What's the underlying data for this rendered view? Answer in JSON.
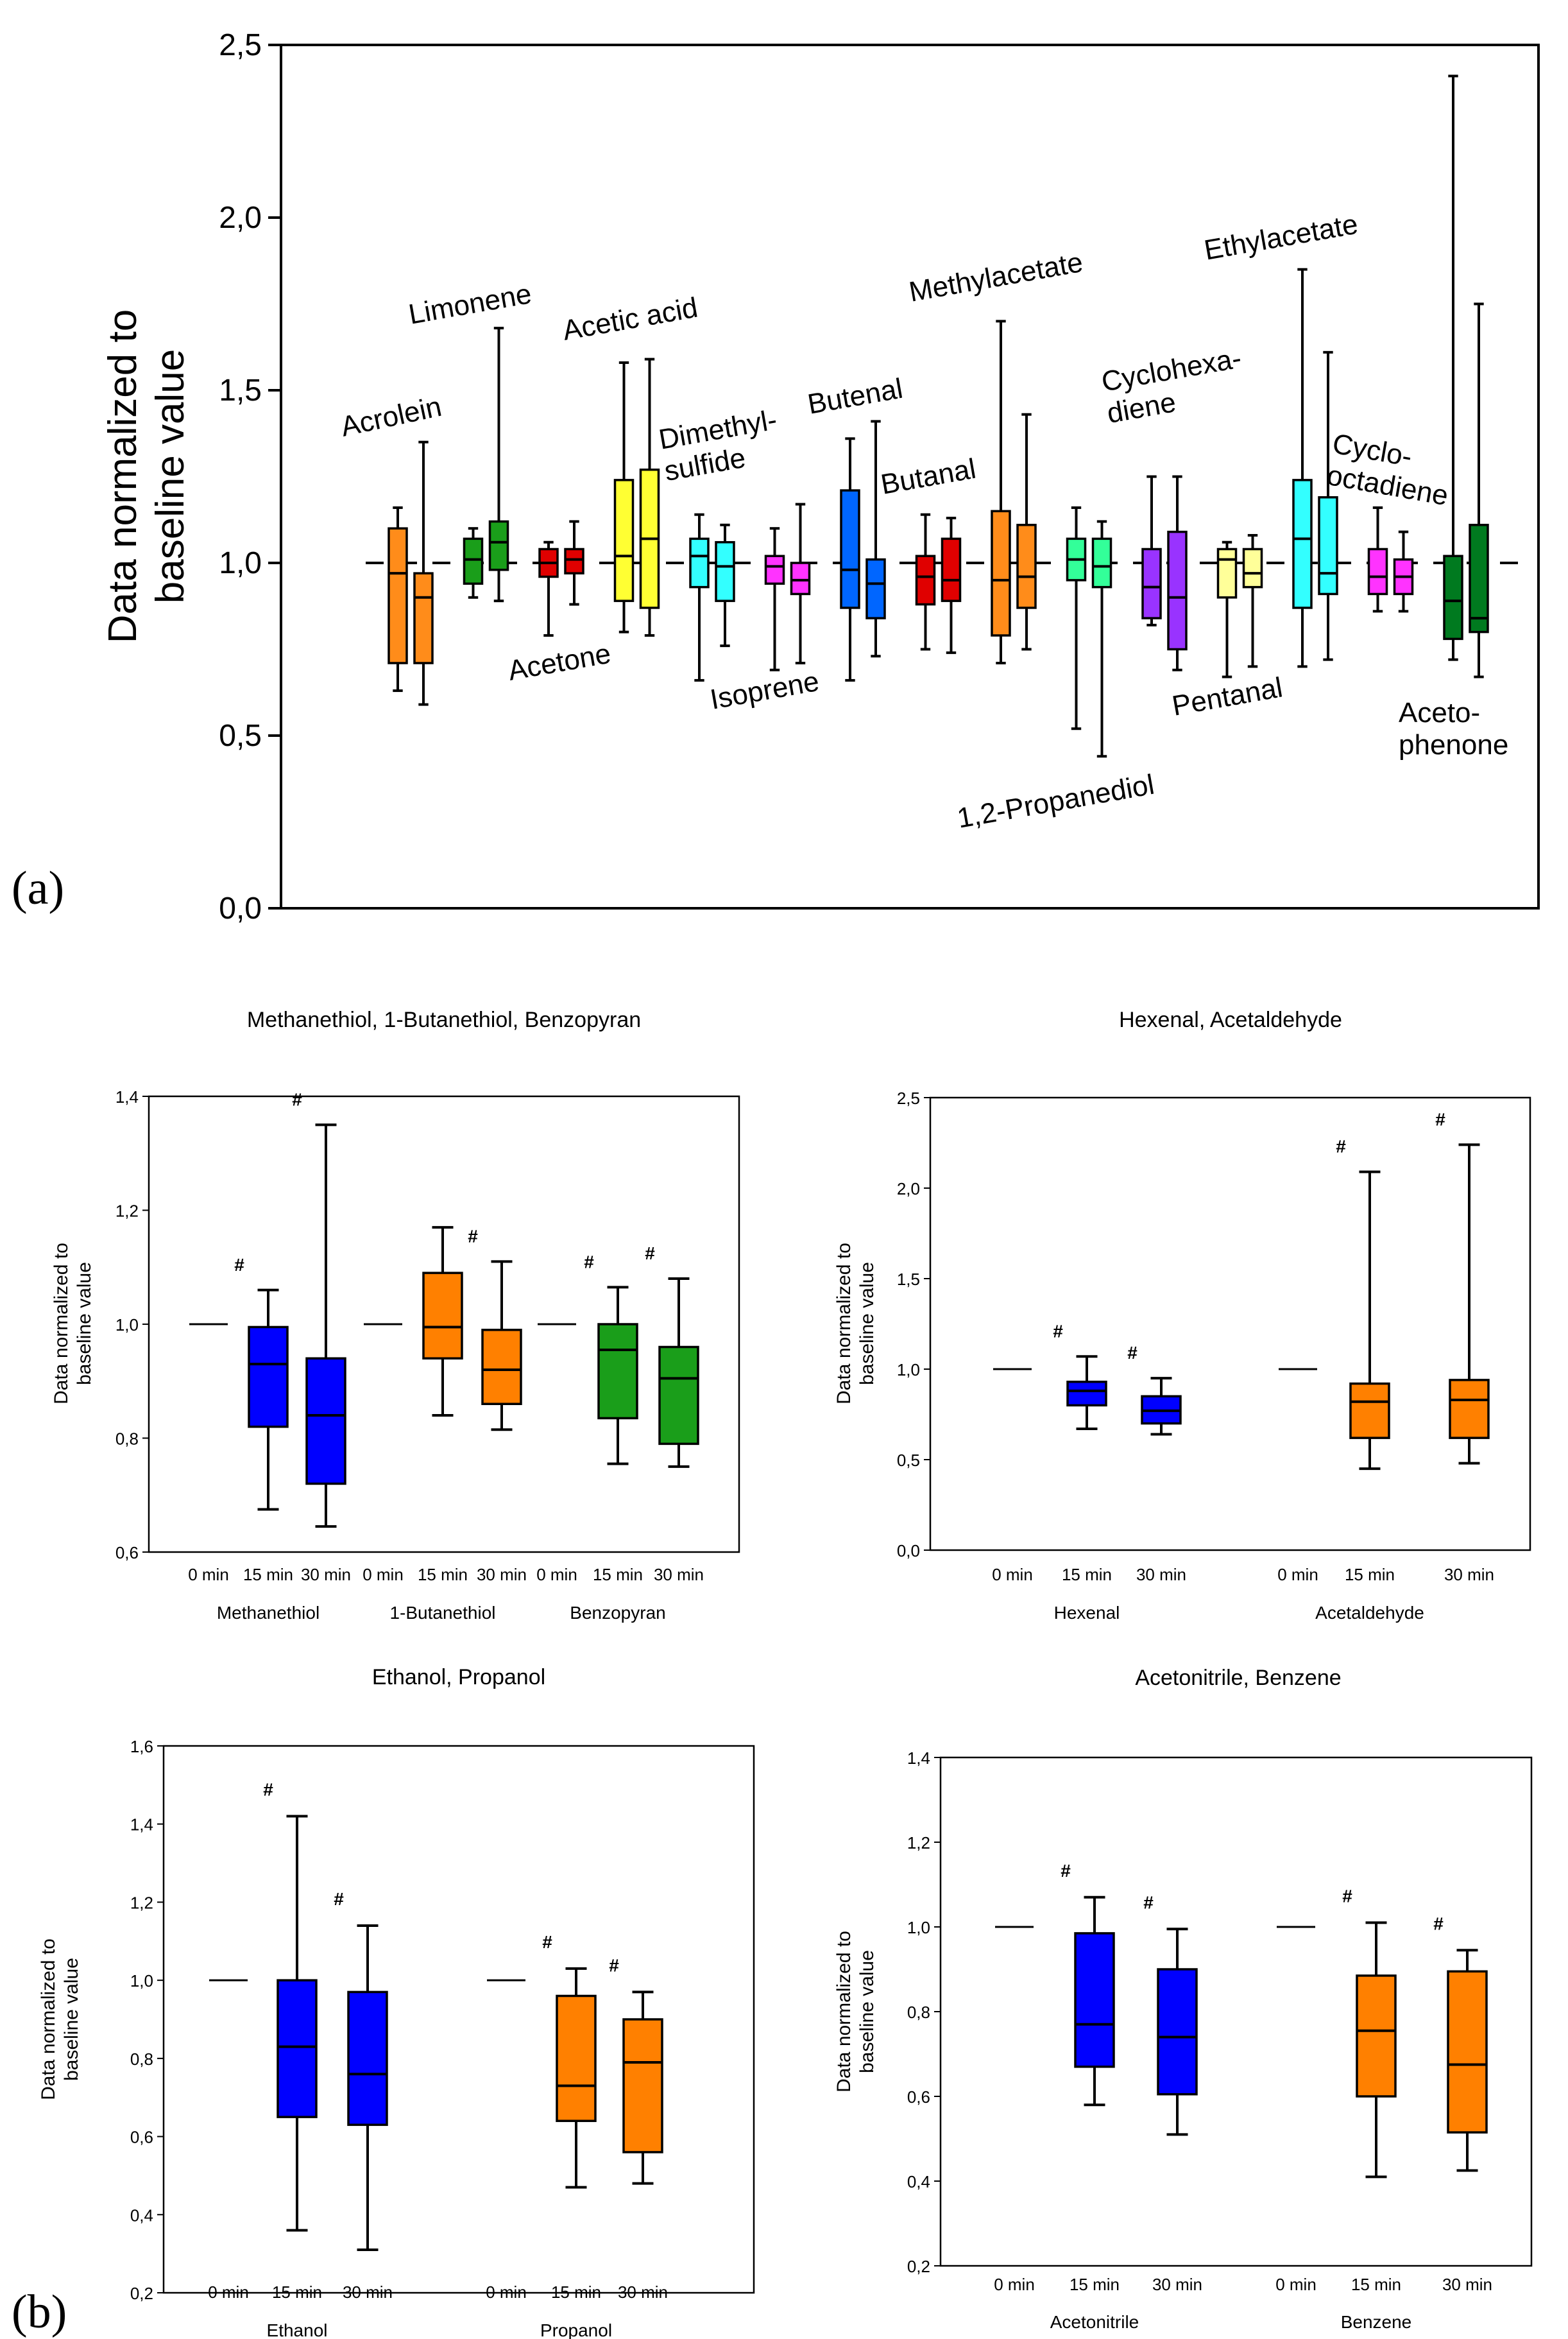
{
  "figure_labels": {
    "a": "(a)",
    "b": "(b)"
  },
  "colors": {
    "orange": "#ff8c1a",
    "green": "#1a9e1a",
    "red": "#e00000",
    "yellow": "#ffff33",
    "cyan": "#33ffff",
    "magenta": "#ff33ff",
    "blue": "#0066ff",
    "springgreen": "#33ff99",
    "purple": "#9933ff",
    "lightyellow": "#ffff99",
    "darkgreen": "#007a1f",
    "darkblue": "#0000ff",
    "orange2": "#ff8000"
  },
  "chart_data": [
    {
      "id": "a",
      "type": "box",
      "ylabel": "Data normalized to baseline value",
      "ylabel_lines": [
        "Data normalized to",
        "baseline value"
      ],
      "ylim": [
        0,
        2.5
      ],
      "yticks": [
        "0,0",
        "0,5",
        "1,0",
        "1,5",
        "2,0",
        "2,5"
      ],
      "reference_line": 1.0,
      "groups": [
        {
          "name": "Acrolein",
          "label_lines": [
            "Acrolein"
          ],
          "color": "orange",
          "boxes": [
            {
              "min": 0.63,
              "q1": 0.71,
              "med": 0.97,
              "q3": 1.1,
              "max": 1.16
            },
            {
              "min": 0.59,
              "q1": 0.71,
              "med": 0.9,
              "q3": 0.97,
              "max": 1.35
            }
          ]
        },
        {
          "name": "Limonene",
          "label_lines": [
            "Limonene"
          ],
          "color": "green",
          "boxes": [
            {
              "min": 0.9,
              "q1": 0.94,
              "med": 1.01,
              "q3": 1.07,
              "max": 1.1
            },
            {
              "min": 0.89,
              "q1": 0.98,
              "med": 1.06,
              "q3": 1.12,
              "max": 1.68
            }
          ]
        },
        {
          "name": "Acetone",
          "label_lines": [
            "Acetone"
          ],
          "color": "red",
          "boxes": [
            {
              "min": 0.79,
              "q1": 0.96,
              "med": 1.0,
              "q3": 1.04,
              "max": 1.06
            },
            {
              "min": 0.88,
              "q1": 0.97,
              "med": 1.01,
              "q3": 1.04,
              "max": 1.12
            }
          ]
        },
        {
          "name": "Acetic acid",
          "label_lines": [
            "Acetic acid"
          ],
          "color": "yellow",
          "boxes": [
            {
              "min": 0.8,
              "q1": 0.89,
              "med": 1.02,
              "q3": 1.24,
              "max": 1.58
            },
            {
              "min": 0.79,
              "q1": 0.87,
              "med": 1.07,
              "q3": 1.27,
              "max": 1.59
            }
          ]
        },
        {
          "name": "Dimethyl-sulfide",
          "label_lines": [
            "Dimethyl-",
            "sulfide"
          ],
          "color": "cyan",
          "boxes": [
            {
              "min": 0.66,
              "q1": 0.93,
              "med": 1.02,
              "q3": 1.07,
              "max": 1.14
            },
            {
              "min": 0.76,
              "q1": 0.89,
              "med": 0.99,
              "q3": 1.06,
              "max": 1.11
            }
          ]
        },
        {
          "name": "Isoprene",
          "label_lines": [
            "Isoprene"
          ],
          "color": "magenta",
          "boxes": [
            {
              "min": 0.69,
              "q1": 0.94,
              "med": 0.99,
              "q3": 1.02,
              "max": 1.1
            },
            {
              "min": 0.71,
              "q1": 0.91,
              "med": 0.95,
              "q3": 1.0,
              "max": 1.17
            }
          ]
        },
        {
          "name": "Butenal",
          "label_lines": [
            "Butenal"
          ],
          "color": "blue",
          "boxes": [
            {
              "min": 0.66,
              "q1": 0.87,
              "med": 0.98,
              "q3": 1.21,
              "max": 1.36
            },
            {
              "min": 0.73,
              "q1": 0.84,
              "med": 0.94,
              "q3": 1.01,
              "max": 1.41
            }
          ]
        },
        {
          "name": "Butanal",
          "label_lines": [
            "Butanal"
          ],
          "color": "red",
          "boxes": [
            {
              "min": 0.75,
              "q1": 0.88,
              "med": 0.96,
              "q3": 1.02,
              "max": 1.14
            },
            {
              "min": 0.74,
              "q1": 0.89,
              "med": 0.95,
              "q3": 1.07,
              "max": 1.13
            }
          ]
        },
        {
          "name": "Methylacetate",
          "label_lines": [
            "Methylacetate"
          ],
          "color": "orange",
          "boxes": [
            {
              "min": 0.71,
              "q1": 0.79,
              "med": 0.95,
              "q3": 1.15,
              "max": 1.7
            },
            {
              "min": 0.75,
              "q1": 0.87,
              "med": 0.96,
              "q3": 1.11,
              "max": 1.43
            }
          ]
        },
        {
          "name": "1,2-Propanediol",
          "label_lines": [
            "1,2-Propanediol"
          ],
          "color": "springgreen",
          "boxes": [
            {
              "min": 0.52,
              "q1": 0.95,
              "med": 1.01,
              "q3": 1.07,
              "max": 1.16
            },
            {
              "min": 0.44,
              "q1": 0.93,
              "med": 0.99,
              "q3": 1.07,
              "max": 1.12
            }
          ]
        },
        {
          "name": "Cyclohexa-diene",
          "label_lines": [
            "Cyclohexa-",
            "diene"
          ],
          "color": "purple",
          "boxes": [
            {
              "min": 0.82,
              "q1": 0.84,
              "med": 0.93,
              "q3": 1.04,
              "max": 1.25
            },
            {
              "min": 0.69,
              "q1": 0.75,
              "med": 0.9,
              "q3": 1.09,
              "max": 1.25
            }
          ]
        },
        {
          "name": "Pentanal",
          "label_lines": [
            "Pentanal"
          ],
          "color": "lightyellow",
          "boxes": [
            {
              "min": 0.67,
              "q1": 0.9,
              "med": 1.01,
              "q3": 1.04,
              "max": 1.06
            },
            {
              "min": 0.7,
              "q1": 0.93,
              "med": 0.97,
              "q3": 1.04,
              "max": 1.08
            }
          ]
        },
        {
          "name": "Ethylacetate",
          "label_lines": [
            "Ethylacetate"
          ],
          "color": "cyan",
          "boxes": [
            {
              "min": 0.7,
              "q1": 0.87,
              "med": 1.07,
              "q3": 1.24,
              "max": 1.85
            },
            {
              "min": 0.72,
              "q1": 0.91,
              "med": 0.97,
              "q3": 1.19,
              "max": 1.61
            }
          ]
        },
        {
          "name": "Cyclo-octadiene",
          "label_lines": [
            "Cyclo-",
            "octadiene"
          ],
          "color": "magenta",
          "boxes": [
            {
              "min": 0.86,
              "q1": 0.91,
              "med": 0.96,
              "q3": 1.04,
              "max": 1.16
            },
            {
              "min": 0.86,
              "q1": 0.91,
              "med": 0.96,
              "q3": 1.01,
              "max": 1.09
            }
          ]
        },
        {
          "name": "Aceto-phenone",
          "label_lines": [
            "Aceto-",
            "phenone"
          ],
          "color": "darkgreen",
          "boxes": [
            {
              "min": 0.72,
              "q1": 0.78,
              "med": 0.89,
              "q3": 1.02,
              "max": 2.41
            },
            {
              "min": 0.67,
              "q1": 0.8,
              "med": 0.84,
              "q3": 1.11,
              "max": 1.75
            }
          ]
        }
      ]
    },
    {
      "id": "b1",
      "type": "box",
      "title": "Methanethiol, 1-Butanethiol, Benzopyran",
      "ylabel_lines": [
        "Data normalized to",
        "baseline value"
      ],
      "ylim": [
        0.6,
        1.4
      ],
      "yticks": [
        "0,6",
        "0,8",
        "1,0",
        "1,2",
        "1,4"
      ],
      "xticks": [
        "0 min",
        "15 min",
        "30 min",
        "0 min",
        "15 min",
        "30 min",
        "0 min",
        "15 min",
        "30 min"
      ],
      "groups": [
        {
          "name": "Methanethiol",
          "color": "darkblue",
          "baseline": 1.0,
          "sig": "#",
          "boxes": [
            {
              "min": 0.675,
              "q1": 0.82,
              "med": 0.93,
              "q3": 0.995,
              "max": 1.06,
              "sig": "#"
            },
            {
              "min": 0.645,
              "q1": 0.72,
              "med": 0.84,
              "q3": 0.94,
              "max": 1.35,
              "sig": "#"
            }
          ]
        },
        {
          "name": "1-Butanethiol",
          "color": "orange2",
          "boxes": [
            {
              "min": 0.84,
              "q1": 0.94,
              "med": 0.995,
              "q3": 1.09,
              "max": 1.17,
              "sig": ""
            },
            {
              "min": 0.815,
              "q1": 0.86,
              "med": 0.92,
              "q3": 0.99,
              "max": 1.11,
              "sig": "#"
            }
          ]
        },
        {
          "name": "Benzopyran",
          "color": "green",
          "boxes": [
            {
              "min": 0.755,
              "q1": 0.835,
              "med": 0.955,
              "q3": 1.0,
              "max": 1.065,
              "sig": "#"
            },
            {
              "min": 0.75,
              "q1": 0.79,
              "med": 0.905,
              "q3": 0.96,
              "max": 1.08,
              "sig": "#"
            }
          ]
        }
      ]
    },
    {
      "id": "b2",
      "type": "box",
      "title": "Hexenal, Acetaldehyde",
      "ylabel_lines": [
        "Data normalized to",
        "baseline value"
      ],
      "ylim": [
        0.0,
        2.5
      ],
      "yticks": [
        "0,0",
        "0,5",
        "1,0",
        "1,5",
        "2,0",
        "2,5"
      ],
      "xticks": [
        "0 min",
        "15 min",
        "30 min",
        "0 min",
        "15 min",
        "30 min"
      ],
      "groups": [
        {
          "name": "Hexenal",
          "color": "darkblue",
          "boxes": [
            {
              "min": 0.67,
              "q1": 0.8,
              "med": 0.88,
              "q3": 0.93,
              "max": 1.07,
              "sig": "#"
            },
            {
              "min": 0.64,
              "q1": 0.7,
              "med": 0.77,
              "q3": 0.85,
              "max": 0.95,
              "sig": "#"
            }
          ]
        },
        {
          "name": "Acetaldehyde",
          "color": "orange2",
          "boxes": [
            {
              "min": 0.45,
              "q1": 0.62,
              "med": 0.82,
              "q3": 0.92,
              "max": 2.09,
              "sig": "#"
            },
            {
              "min": 0.48,
              "q1": 0.62,
              "med": 0.83,
              "q3": 0.94,
              "max": 2.24,
              "sig": "#"
            }
          ]
        }
      ]
    },
    {
      "id": "b3",
      "type": "box",
      "title": "Ethanol, Propanol",
      "ylabel_lines": [
        "Data normalized to",
        "baseline value"
      ],
      "ylim": [
        0.2,
        1.6
      ],
      "yticks": [
        "0,2",
        "0,4",
        "0,6",
        "0,8",
        "1,0",
        "1,2",
        "1,4",
        "1,6"
      ],
      "xticks": [
        "0 min",
        "15 min",
        "30 min",
        "0 min",
        "15 min",
        "30 min"
      ],
      "groups": [
        {
          "name": "Ethanol",
          "color": "darkblue",
          "boxes": [
            {
              "min": 0.36,
              "q1": 0.65,
              "med": 0.83,
              "q3": 1.0,
              "max": 1.42,
              "sig": "#"
            },
            {
              "min": 0.31,
              "q1": 0.63,
              "med": 0.76,
              "q3": 0.97,
              "max": 1.14,
              "sig": "#"
            }
          ]
        },
        {
          "name": "Propanol",
          "color": "orange2",
          "boxes": [
            {
              "min": 0.47,
              "q1": 0.64,
              "med": 0.73,
              "q3": 0.96,
              "max": 1.03,
              "sig": "#"
            },
            {
              "min": 0.48,
              "q1": 0.56,
              "med": 0.79,
              "q3": 0.9,
              "max": 0.97,
              "sig": "#"
            }
          ]
        }
      ]
    },
    {
      "id": "b4",
      "type": "box",
      "title": "Acetonitrile, Benzene",
      "ylabel_lines": [
        "Data normalized to",
        "baseline value"
      ],
      "ylim": [
        0.2,
        1.4
      ],
      "yticks": [
        "0,2",
        "0,4",
        "0,6",
        "0,8",
        "1,0",
        "1,2",
        "1,4"
      ],
      "xticks": [
        "0 min",
        "15 min",
        "30 min",
        "0 min",
        "15 min",
        "30 min"
      ],
      "groups": [
        {
          "name": "Acetonitrile",
          "color": "darkblue",
          "boxes": [
            {
              "min": 0.58,
              "q1": 0.67,
              "med": 0.77,
              "q3": 0.985,
              "max": 1.07,
              "sig": "#"
            },
            {
              "min": 0.51,
              "q1": 0.605,
              "med": 0.74,
              "q3": 0.9,
              "max": 0.995,
              "sig": "#"
            }
          ]
        },
        {
          "name": "Benzene",
          "color": "orange2",
          "boxes": [
            {
              "min": 0.41,
              "q1": 0.6,
              "med": 0.755,
              "q3": 0.885,
              "max": 1.01,
              "sig": "#"
            },
            {
              "min": 0.425,
              "q1": 0.515,
              "med": 0.675,
              "q3": 0.895,
              "max": 0.945,
              "sig": "#"
            }
          ]
        }
      ]
    }
  ]
}
